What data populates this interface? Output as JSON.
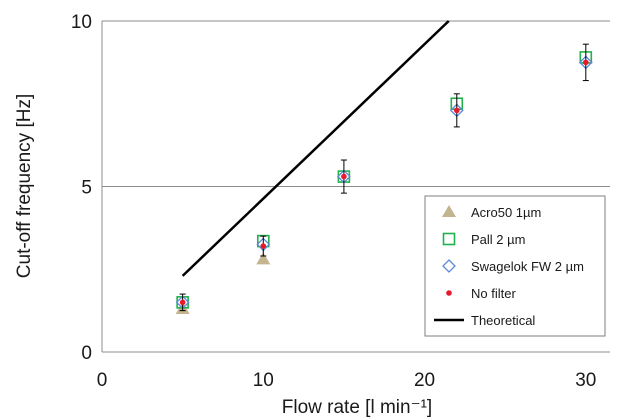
{
  "chart_data": {
    "type": "scatter",
    "xlabel": "Flow rate [l min⁻¹]",
    "ylabel": "Cut-off frequency [Hz]",
    "xlim": [
      0,
      31.5
    ],
    "ylim": [
      0,
      10
    ],
    "x_ticks": [
      0,
      10,
      20,
      30
    ],
    "y_ticks": [
      0,
      5,
      10
    ],
    "grid": "horizontal",
    "legend_position": "bottom-right",
    "series": [
      {
        "name": "Acro50 1µm",
        "marker": "triangle",
        "color": "#c4b48f",
        "x": [
          5,
          10
        ],
        "y": [
          1.3,
          2.8
        ]
      },
      {
        "name": "Pall 2 µm",
        "marker": "square-open",
        "color": "#22b14c",
        "x": [
          5,
          10,
          15,
          22,
          30
        ],
        "y": [
          1.5,
          3.35,
          5.3,
          7.5,
          8.9
        ]
      },
      {
        "name": "Swagelok FW 2 µm",
        "marker": "diamond-open",
        "color": "#5b8bd6",
        "x": [
          5,
          10,
          15,
          22,
          30
        ],
        "y": [
          1.5,
          3.25,
          5.3,
          7.3,
          8.75
        ]
      },
      {
        "name": "No filter",
        "marker": "dot",
        "color": "#e8192c",
        "x": [
          5,
          10,
          15,
          22,
          30
        ],
        "y": [
          1.5,
          3.2,
          5.3,
          7.3,
          8.75
        ],
        "error": [
          0.25,
          0.3,
          0.5,
          0.5,
          0.55
        ]
      },
      {
        "name": "Theoretical",
        "marker": "line",
        "color": "#000000",
        "x": [
          5,
          21.5
        ],
        "y": [
          2.3,
          10
        ]
      }
    ]
  }
}
